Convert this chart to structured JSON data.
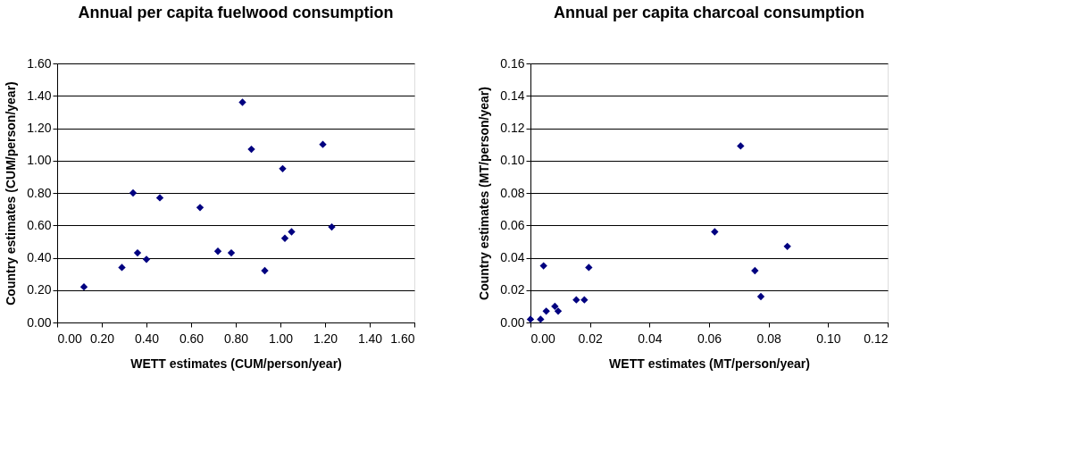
{
  "chart_data": [
    {
      "type": "scatter",
      "title": "Annual per capita fuelwood consumption",
      "xlabel": "WETT estimates (CUM/person/year)",
      "ylabel": "Country estimates (CUM/person/year)",
      "marker": "diamond",
      "grid": "y",
      "xlim": [
        0,
        1.6
      ],
      "ylim": [
        0,
        1.6
      ],
      "xticks": [
        {
          "value": 0,
          "label": "0.00"
        },
        {
          "value": 0.2,
          "label": "0.20"
        },
        {
          "value": 0.4,
          "label": "0.40"
        },
        {
          "value": 0.6,
          "label": "0.60"
        },
        {
          "value": 0.8,
          "label": "0.80"
        },
        {
          "value": 1.0,
          "label": "1.00"
        },
        {
          "value": 1.2,
          "label": "1.20"
        },
        {
          "value": 1.4,
          "label": "1.40"
        },
        {
          "value": 1.6,
          "label": "1.60"
        }
      ],
      "yticks": [
        {
          "value": 0,
          "label": "0.00"
        },
        {
          "value": 0.2,
          "label": "0.20"
        },
        {
          "value": 0.4,
          "label": "0.40"
        },
        {
          "value": 0.6,
          "label": "0.60"
        },
        {
          "value": 0.8,
          "label": "0.80"
        },
        {
          "value": 1.0,
          "label": "1.00"
        },
        {
          "value": 1.2,
          "label": "1.20"
        },
        {
          "value": 1.4,
          "label": "1.40"
        },
        {
          "value": 1.6,
          "label": "1.60"
        }
      ],
      "series": [
        {
          "color": "#000080",
          "x": [
            0.12,
            0.29,
            0.34,
            0.36,
            0.4,
            0.46,
            0.64,
            0.72,
            0.78,
            0.83,
            0.87,
            0.93,
            1.01,
            1.02,
            1.05,
            1.19,
            1.23
          ],
          "values": [
            0.22,
            0.34,
            0.8,
            0.43,
            0.39,
            0.77,
            0.71,
            0.44,
            0.43,
            1.36,
            1.07,
            0.32,
            0.95,
            0.52,
            0.56,
            1.1,
            0.59
          ]
        }
      ]
    },
    {
      "type": "scatter",
      "title": "Annual per capita charcoal consumption",
      "xlabel": "WETT estimates (MT/person/year)",
      "ylabel": "Country estimates (MT/person/year)",
      "marker": "diamond",
      "grid": "y",
      "xlim": [
        0,
        0.12
      ],
      "ylim": [
        0,
        0.16
      ],
      "xticks": [
        {
          "value": 0,
          "label": "0.00"
        },
        {
          "value": 0.02,
          "label": "0.02"
        },
        {
          "value": 0.04,
          "label": "0.04"
        },
        {
          "value": 0.06,
          "label": "0.06"
        },
        {
          "value": 0.08,
          "label": "0.08"
        },
        {
          "value": 0.1,
          "label": "0.10"
        },
        {
          "value": 0.12,
          "label": "0.12"
        }
      ],
      "yticks": [
        {
          "value": 0,
          "label": "0.00"
        },
        {
          "value": 0.02,
          "label": "0.02"
        },
        {
          "value": 0.04,
          "label": "0.04"
        },
        {
          "value": 0.06,
          "label": "0.06"
        },
        {
          "value": 0.08,
          "label": "0.08"
        },
        {
          "value": 0.1,
          "label": "0.10"
        },
        {
          "value": 0.12,
          "label": "0.12"
        },
        {
          "value": 0.14,
          "label": "0.14"
        },
        {
          "value": 0.16,
          "label": "0.16"
        }
      ],
      "series": [
        {
          "color": "#000080",
          "x": [
            0.0,
            0.0034,
            0.0044,
            0.0053,
            0.0082,
            0.0093,
            0.0154,
            0.0181,
            0.0196,
            0.0619,
            0.0706,
            0.0754,
            0.0774,
            0.0863
          ],
          "values": [
            0.002,
            0.002,
            0.035,
            0.007,
            0.01,
            0.007,
            0.014,
            0.014,
            0.034,
            0.056,
            0.109,
            0.032,
            0.016,
            0.047
          ]
        }
      ]
    }
  ]
}
